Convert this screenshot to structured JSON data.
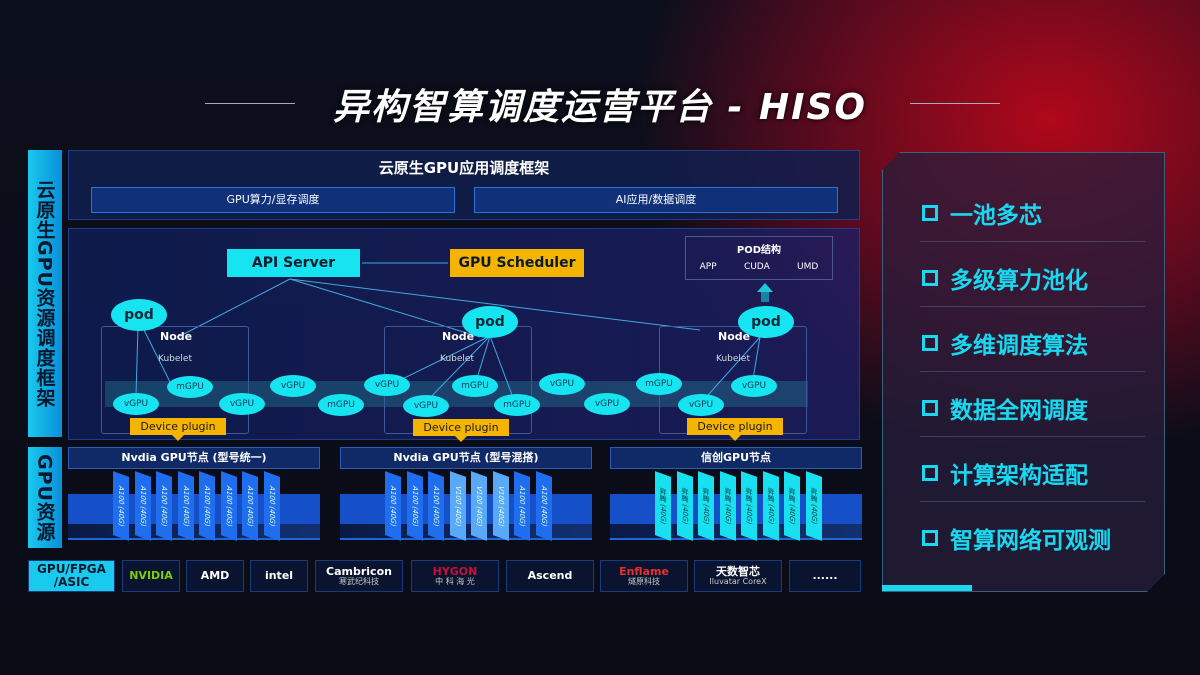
{
  "title": "异构智算调度运营平台 - HISO",
  "left_labels": {
    "top": "云原生GPU资源调度框架",
    "bottom": "GPU资源"
  },
  "framework": {
    "title": "云原生GPU应用调度框架",
    "sub": [
      "GPU算力/显存调度",
      "AI应用/数据调度"
    ]
  },
  "diagram": {
    "api_server": "API Server",
    "gpu_scheduler": "GPU Scheduler",
    "pod_structure": {
      "title": "POD结构",
      "items": [
        "APP",
        "CUDA",
        "UMD"
      ]
    },
    "pod": "pod",
    "node": "Node",
    "kubelet": "Kubelet",
    "device_plugin": "Device plugin",
    "vgpu": "vGPU",
    "mgpu": "mGPU"
  },
  "gpu_groups": [
    {
      "title": "Nvdia GPU节点 (型号统一)",
      "chips": [
        "A100 (40G)",
        "A100 (40G)",
        "A100 (40G)",
        "A100 (40G)",
        "A100 (40G)",
        "A100 (40G)",
        "A100 (40G)",
        "A100 (40G)"
      ],
      "color": "#1f6ef0"
    },
    {
      "title": "Nvdia GPU节点 (型号混搭)",
      "chips": [
        "A100 (40G)",
        "A100 (40G)",
        "A100 (40G)",
        "V100 (40G)",
        "V100 (40G)",
        "V100 (40G)",
        "A100 (40G)",
        "A100 (40G)"
      ],
      "color": "#1f6ef0"
    },
    {
      "title": "信创GPU节点",
      "chips": [
        "昇腾 (40G)",
        "昇腾 (40G)",
        "昇腾 (40G)",
        "昇腾 (40G)",
        "昇腾 (40G)",
        "昇腾 (40G)",
        "昇腾 (40G)",
        "昇腾 (40G)"
      ],
      "color": "#19e0f0"
    }
  ],
  "vendors": {
    "label": "GPU/FPGA /ASIC",
    "items": [
      "NVIDIA",
      "AMD",
      "intel",
      "Cambricon|寒武纪科技",
      "HYGON|中 科 海 光",
      "Ascend",
      "Enflame|燧原科技",
      "天数智芯|Iluvatar CoreX",
      "......"
    ]
  },
  "features": [
    "一池多芯",
    "多级算力池化",
    "多维调度算法",
    "数据全网调度",
    "计算架构适配",
    "智算网络可观测"
  ],
  "colors": {
    "cyan": "#16e4f0",
    "gold": "#f5b400",
    "blue": "#1f6ef0"
  }
}
